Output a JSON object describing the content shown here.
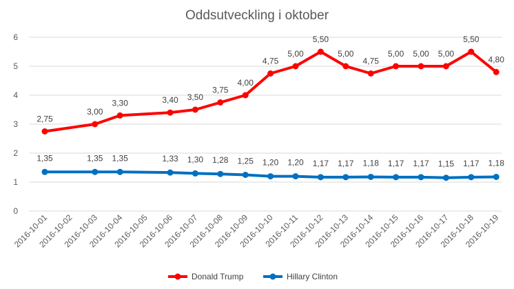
{
  "chart_data": {
    "type": "line",
    "title": "Oddsutveckling i oktober",
    "xlabel": "",
    "ylabel": "",
    "ylim": [
      0,
      6
    ],
    "yticks": [
      "0",
      "1",
      "2",
      "3",
      "4",
      "5",
      "6"
    ],
    "grid": true,
    "legend_position": "bottom",
    "categories": [
      "2016-10-01",
      "2016-10-02",
      "2016-10-03",
      "2016-10-04",
      "2016-10-05",
      "2016-10-06",
      "2016-10-07",
      "2016-10-08",
      "2016-10-09",
      "2016-10-10",
      "2016-10-11",
      "2016-10-12",
      "2016-10-13",
      "2016-10-14",
      "2016-10-15",
      "2016-10-16",
      "2016-10-17",
      "2016-10-18",
      "2016-10-19"
    ],
    "series": [
      {
        "name": "Donald Trump",
        "color": "#ff0000",
        "x": [
          "2016-10-01",
          "2016-10-03",
          "2016-10-04",
          "2016-10-06",
          "2016-10-07",
          "2016-10-08",
          "2016-10-09",
          "2016-10-10",
          "2016-10-11",
          "2016-10-12",
          "2016-10-13",
          "2016-10-14",
          "2016-10-15",
          "2016-10-16",
          "2016-10-17",
          "2016-10-18",
          "2016-10-19"
        ],
        "values": [
          2.75,
          3.0,
          3.3,
          3.4,
          3.5,
          3.75,
          4.0,
          4.75,
          5.0,
          5.5,
          5.0,
          4.75,
          5.0,
          5.0,
          5.0,
          5.5,
          4.8
        ],
        "labels": [
          "2,75",
          "3,00",
          "3,30",
          "3,40",
          "3,50",
          "3,75",
          "4,00",
          "4,75",
          "5,00",
          "5,50",
          "5,00",
          "4,75",
          "5,00",
          "5,00",
          "5,00",
          "5,50",
          "4,80"
        ]
      },
      {
        "name": "Hillary Clinton",
        "color": "#0070c0",
        "x": [
          "2016-10-01",
          "2016-10-03",
          "2016-10-04",
          "2016-10-06",
          "2016-10-07",
          "2016-10-08",
          "2016-10-09",
          "2016-10-10",
          "2016-10-11",
          "2016-10-12",
          "2016-10-13",
          "2016-10-14",
          "2016-10-15",
          "2016-10-16",
          "2016-10-17",
          "2016-10-18",
          "2016-10-19"
        ],
        "values": [
          1.35,
          1.35,
          1.35,
          1.33,
          1.3,
          1.28,
          1.25,
          1.2,
          1.2,
          1.17,
          1.17,
          1.18,
          1.17,
          1.17,
          1.15,
          1.17,
          1.18
        ],
        "labels": [
          "1,35",
          "1,35",
          "1,35",
          "1,33",
          "1,30",
          "1,28",
          "1,25",
          "1,20",
          "1,20",
          "1,17",
          "1,17",
          "1,18",
          "1,17",
          "1,17",
          "1,15",
          "1,17",
          "1,18"
        ]
      }
    ]
  }
}
